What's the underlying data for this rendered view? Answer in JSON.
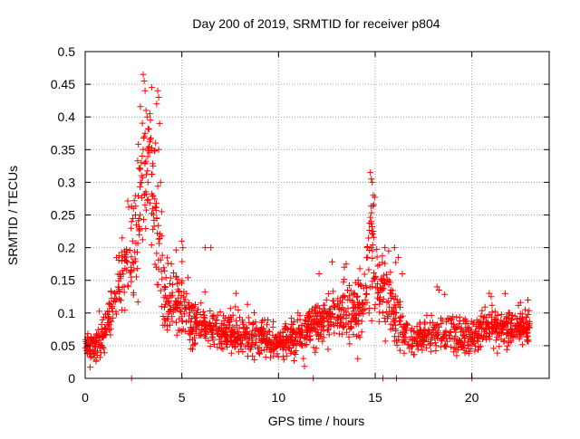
{
  "chart_data": {
    "type": "scatter",
    "title": "Day 200 of 2019, SRMTID for receiver p804",
    "xlabel": "GPS time / hours",
    "ylabel": "SRMTID / TECUs",
    "xlim": [
      0,
      24
    ],
    "ylim": [
      0,
      0.5
    ],
    "xticks": [
      0,
      5,
      10,
      15,
      20
    ],
    "xtick_labels": [
      "0",
      "5",
      "10",
      "15",
      "20"
    ],
    "yticks": [
      0,
      0.05,
      0.1,
      0.15,
      0.2,
      0.25,
      0.3,
      0.35,
      0.4,
      0.45,
      0.5
    ],
    "ytick_labels": [
      "0",
      "0.05",
      "0.1",
      "0.15",
      "0.2",
      "0.25",
      "0.3",
      "0.35",
      "0.4",
      "0.45",
      "0.5"
    ],
    "grid": true,
    "marker": "+",
    "color": "#ff0000",
    "series": [
      {
        "name": "SRMTID",
        "profile": [
          [
            0.0,
            0.05,
            0.02
          ],
          [
            0.5,
            0.05,
            0.02
          ],
          [
            1.0,
            0.07,
            0.025
          ],
          [
            1.5,
            0.12,
            0.04
          ],
          [
            2.0,
            0.16,
            0.05
          ],
          [
            2.5,
            0.2,
            0.07
          ],
          [
            3.0,
            0.3,
            0.1
          ],
          [
            3.3,
            0.34,
            0.1
          ],
          [
            3.6,
            0.25,
            0.1
          ],
          [
            4.0,
            0.14,
            0.05
          ],
          [
            4.5,
            0.12,
            0.04
          ],
          [
            5.0,
            0.11,
            0.04
          ],
          [
            5.5,
            0.09,
            0.03
          ],
          [
            6.0,
            0.08,
            0.03
          ],
          [
            7.0,
            0.075,
            0.025
          ],
          [
            8.0,
            0.065,
            0.025
          ],
          [
            9.0,
            0.065,
            0.025
          ],
          [
            10.0,
            0.055,
            0.02
          ],
          [
            11.0,
            0.06,
            0.025
          ],
          [
            12.0,
            0.08,
            0.03
          ],
          [
            13.0,
            0.1,
            0.035
          ],
          [
            14.0,
            0.1,
            0.04
          ],
          [
            14.5,
            0.13,
            0.05
          ],
          [
            14.8,
            0.2,
            0.08
          ],
          [
            15.0,
            0.15,
            0.06
          ],
          [
            15.5,
            0.13,
            0.05
          ],
          [
            16.0,
            0.1,
            0.04
          ],
          [
            16.5,
            0.065,
            0.025
          ],
          [
            17.0,
            0.06,
            0.02
          ],
          [
            18.0,
            0.07,
            0.025
          ],
          [
            19.0,
            0.07,
            0.025
          ],
          [
            20.0,
            0.06,
            0.02
          ],
          [
            20.5,
            0.075,
            0.025
          ],
          [
            21.0,
            0.08,
            0.025
          ],
          [
            22.0,
            0.075,
            0.025
          ],
          [
            23.0,
            0.075,
            0.025
          ]
        ],
        "peaks": [
          [
            3.0,
            0.465
          ],
          [
            3.05,
            0.455
          ],
          [
            3.1,
            0.44
          ],
          [
            3.15,
            0.41
          ],
          [
            3.2,
            0.4
          ],
          [
            3.1,
            0.375
          ],
          [
            3.05,
            0.37
          ],
          [
            3.0,
            0.35
          ],
          [
            2.95,
            0.34
          ],
          [
            2.9,
            0.33
          ],
          [
            2.85,
            0.32
          ],
          [
            3.25,
            0.3
          ],
          [
            3.75,
            0.44
          ],
          [
            3.8,
            0.43
          ],
          [
            3.7,
            0.42
          ],
          [
            3.85,
            0.39
          ],
          [
            3.8,
            0.35
          ],
          [
            3.9,
            0.3
          ],
          [
            3.95,
            0.255
          ],
          [
            2.5,
            0.26
          ],
          [
            2.6,
            0.25
          ],
          [
            2.4,
            0.24
          ],
          [
            5.0,
            0.21
          ],
          [
            5.05,
            0.2
          ],
          [
            6.2,
            0.2
          ],
          [
            6.5,
            0.2
          ],
          [
            14.75,
            0.315
          ],
          [
            14.8,
            0.305
          ],
          [
            14.85,
            0.3
          ],
          [
            14.9,
            0.28
          ],
          [
            14.8,
            0.24
          ],
          [
            14.9,
            0.225
          ],
          [
            14.6,
            0.2
          ],
          [
            15.5,
            0.2
          ],
          [
            15.7,
            0.195
          ],
          [
            16.0,
            0.2
          ],
          [
            16.2,
            0.185
          ],
          [
            13.4,
            0.17
          ],
          [
            13.5,
            0.175
          ],
          [
            12.1,
            0.16
          ],
          [
            16.4,
            0.16
          ],
          [
            18.2,
            0.14
          ],
          [
            18.3,
            0.135
          ],
          [
            20.9,
            0.13
          ],
          [
            21.0,
            0.125
          ],
          [
            22.9,
            0.12
          ],
          [
            7.8,
            0.13
          ]
        ],
        "zeros": [
          2.4,
          11.8,
          15.4,
          16.1,
          20.0
        ],
        "point_count": 1800
      }
    ]
  }
}
